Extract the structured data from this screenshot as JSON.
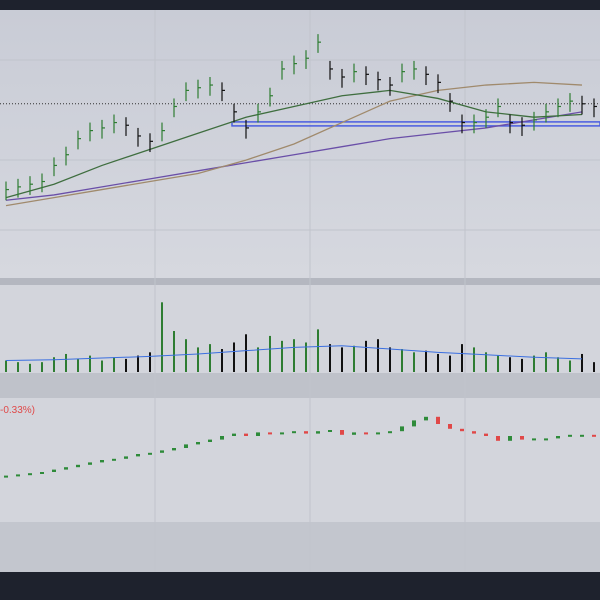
{
  "chart_data": {
    "type": "ohlc",
    "indicator_label": "-0.33%)",
    "close": [
      33,
      34,
      35,
      36,
      42,
      46,
      52,
      55,
      56,
      58,
      57,
      53,
      51,
      55,
      64,
      70,
      71,
      72,
      70,
      62,
      56,
      62,
      68,
      78,
      80,
      82,
      88,
      78,
      75,
      77,
      76,
      74,
      72,
      77,
      78,
      76,
      73,
      66,
      58,
      58,
      60,
      64,
      58,
      57,
      59,
      62,
      64,
      66,
      65,
      64
    ],
    "high": [
      36,
      37,
      38,
      39,
      45,
      49,
      55,
      58,
      59,
      61,
      60,
      56,
      54,
      58,
      67,
      73,
      74,
      75,
      73,
      65,
      59,
      65,
      71,
      81,
      83,
      85,
      91,
      81,
      78,
      80,
      79,
      77,
      75,
      80,
      81,
      79,
      76,
      69,
      61,
      61,
      63,
      67,
      61,
      60,
      62,
      65,
      67,
      69,
      68,
      67
    ],
    "low": [
      29,
      30,
      31,
      32,
      38,
      42,
      48,
      51,
      52,
      54,
      53,
      49,
      47,
      51,
      60,
      66,
      67,
      68,
      66,
      58,
      52,
      58,
      64,
      74,
      76,
      78,
      84,
      74,
      71,
      73,
      72,
      70,
      68,
      73,
      74,
      72,
      69,
      62,
      54,
      54,
      56,
      60,
      54,
      53,
      55,
      58,
      60,
      62,
      61,
      60
    ],
    "ylim": [
      0,
      100
    ],
    "ma_x": [
      0,
      4,
      8,
      12,
      16,
      20,
      24,
      28,
      32,
      36,
      40,
      44,
      48
    ],
    "series": [
      {
        "color": "#6a4fa8",
        "values": [
          29,
          31,
          34,
          37,
          40,
          43,
          46,
          49,
          52,
          54,
          56,
          59,
          62
        ]
      },
      {
        "color": "#a08a6c",
        "values": [
          27,
          30,
          33,
          36,
          39,
          44,
          50,
          58,
          66,
          70,
          72,
          73,
          72
        ]
      },
      {
        "color": "#3f6e3f",
        "values": [
          30,
          35,
          42,
          48,
          54,
          60,
          64,
          68,
          70,
          67,
          62,
          60,
          61
        ]
      }
    ],
    "support_level": 57.5,
    "dotted_level": 65,
    "volume": [
      14,
      12,
      10,
      12,
      18,
      22,
      16,
      20,
      14,
      18,
      16,
      20,
      24,
      85,
      50,
      40,
      30,
      34,
      28,
      36,
      46,
      30,
      44,
      38,
      40,
      36,
      52,
      34,
      30,
      32,
      38,
      40,
      30,
      28,
      24,
      26,
      22,
      20,
      34,
      30,
      24,
      20,
      18,
      16,
      20,
      24,
      18,
      14,
      22,
      12
    ],
    "volume_ma": [
      14,
      15,
      17,
      19,
      22,
      26,
      30,
      32,
      28,
      24,
      21,
      18,
      16
    ],
    "volume_ylim": [
      0,
      100
    ],
    "lower_close": [
      37,
      38,
      39,
      40,
      42,
      44,
      46,
      48,
      50,
      51,
      53,
      55,
      56,
      58,
      60,
      63,
      65,
      67,
      70,
      72,
      70,
      73,
      72,
      73,
      74,
      72,
      74,
      75,
      71,
      73,
      72,
      73,
      74,
      78,
      83,
      86,
      80,
      76,
      74,
      72,
      70,
      66,
      70,
      67,
      68,
      68,
      70,
      71,
      71,
      70
    ],
    "lower_ylim": [
      0,
      100
    ]
  }
}
